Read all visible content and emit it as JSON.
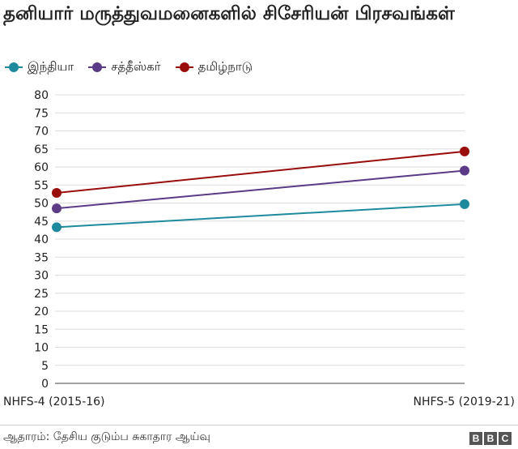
{
  "title": "தனியார் மருத்துவமனைகளில் சிசேரியன் பிரசவங்கள்",
  "source": "ஆதாரம்: தேசிய குடும்ப சுகாதார ஆய்வு",
  "logo": "BBC",
  "chart_data": {
    "type": "line",
    "title": "தனியார் மருத்துவமனைகளில் சிசேரியன் பிரசவங்கள்",
    "xlabel": "",
    "ylabel": "",
    "categories": [
      "NHFS-4 (2015-16)",
      "NHFS-5 (2019-21)"
    ],
    "ylim": [
      0,
      80
    ],
    "yticks": [
      0,
      5,
      10,
      15,
      20,
      25,
      30,
      35,
      40,
      45,
      50,
      55,
      60,
      65,
      70,
      75,
      80
    ],
    "grid": true,
    "legend_position": "top-left",
    "series": [
      {
        "name": "இந்தியா",
        "values": [
          43.3,
          49.7
        ],
        "color": "#1f8a9e"
      },
      {
        "name": "சத்தீஸ்கர்",
        "values": [
          48.5,
          59.0
        ],
        "color": "#5b3b86"
      },
      {
        "name": "தமிழ்நாடு",
        "values": [
          52.8,
          64.3
        ],
        "color": "#990d0d"
      }
    ]
  }
}
